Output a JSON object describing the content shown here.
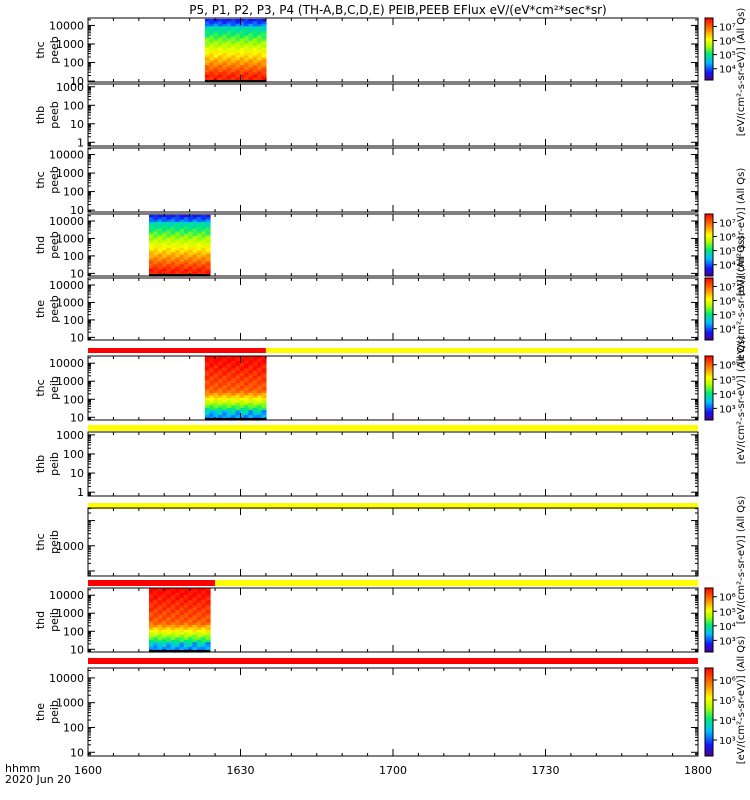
{
  "title": "P5, P1, P2, P3, P4 (TH-A,B,C,D,E) PEIB,PEEB EFlux eV/(eV*cm²*sec*sr)",
  "x_axis": {
    "ticks": [
      "1600",
      "1630",
      "1700",
      "1730",
      "1800"
    ],
    "label_line1": "hhmm",
    "label_line2": "2020 Jun 20"
  },
  "colorbar_labels": {
    "cb1": "[eV/(cm²-s-sr-eV)] (All Qs)",
    "cb2": "[eV/(cm²-s-sr-eV)] (All Qs)",
    "cb3": "[eV/(cm²-s-sr-eV)] (All Qs)",
    "cb4": "[eV/(cm²-s-sr-eV)] (All Qs)",
    "cb5": "[eV/(cm²-s-sr-eV)] (All Qs)",
    "cb6": "[eV/(cm²-s-sr-eV)] (All Qs)"
  },
  "colors": {
    "flag_red": "#ff0000",
    "flag_yellow": "#ffff00",
    "axis": "#000000"
  },
  "chart_data": {
    "type": "heatmap",
    "x_range_minutes": [
      960,
      1080
    ],
    "panels": [
      {
        "id": "p1",
        "label1": "thc",
        "label2": "peeb",
        "y_ticks": [
          "10",
          "100",
          "1000",
          "10000"
        ],
        "y_range_log": [
          0.95,
          4.4
        ],
        "spectrogram": {
          "start_min": 983,
          "end_min": 995,
          "bottom": 0.95,
          "top": 4.35,
          "style": "electron"
        },
        "colorbar": {
          "ticks": [
            "10⁴",
            "10⁵",
            "10⁶",
            "10⁷"
          ]
        }
      },
      {
        "id": "p2",
        "label1": "thb",
        "label2": "peeb",
        "y_ticks": [
          "1",
          "10",
          "100",
          "1000"
        ],
        "y_range_log": [
          -0.2,
          3.15
        ]
      },
      {
        "id": "p3",
        "label1": "thc",
        "label2": "peeb",
        "y_ticks": [
          "10",
          "100",
          "1000",
          "10000"
        ],
        "y_range_log": [
          0.9,
          4.35
        ]
      },
      {
        "id": "p4",
        "label1": "thd",
        "label2": "peeb",
        "y_ticks": [
          "10",
          "100",
          "1000",
          "10000"
        ],
        "y_range_log": [
          0.85,
          4.4
        ],
        "spectrogram": {
          "start_min": 972,
          "end_min": 984,
          "bottom": 0.85,
          "top": 4.35,
          "style": "electron"
        },
        "colorbar": {
          "ticks": [
            "10⁴",
            "10⁵",
            "10⁶",
            "10⁷"
          ]
        }
      },
      {
        "id": "p5",
        "label1": "the",
        "label2": "peeb",
        "y_ticks": [
          "10",
          "100",
          "1000",
          "10000"
        ],
        "y_range_log": [
          0.85,
          4.4
        ],
        "colorbar": {
          "ticks": [
            "10⁴",
            "10⁵",
            "10⁶",
            "10⁷"
          ]
        }
      },
      {
        "id": "p6",
        "label1": "thc",
        "label2": "peib",
        "y_ticks": [
          "10",
          "100",
          "1000",
          "10000"
        ],
        "y_range_log": [
          0.85,
          4.4
        ],
        "spectrogram": {
          "start_min": 983,
          "end_min": 995,
          "bottom": 0.85,
          "top": 4.4,
          "style": "ion"
        },
        "colorbar": {
          "ticks": [
            "10³",
            "10⁴",
            "10⁵",
            "10⁶"
          ]
        }
      },
      {
        "id": "p7",
        "label1": "thb",
        "label2": "peib",
        "y_ticks": [
          "1",
          "10",
          "100",
          "1000"
        ],
        "y_range_log": [
          -0.2,
          3.15
        ]
      },
      {
        "id": "p8",
        "label1": "thc",
        "label2": "peib",
        "y_ticks": [
          "1000"
        ],
        "y_range_log": [
          1.8,
          4.5
        ]
      },
      {
        "id": "p9",
        "label1": "thd",
        "label2": "peib",
        "y_ticks": [
          "10",
          "100",
          "1000",
          "10000"
        ],
        "y_range_log": [
          0.85,
          4.4
        ],
        "spectrogram": {
          "start_min": 972,
          "end_min": 984,
          "bottom": 0.85,
          "top": 4.4,
          "style": "ion"
        },
        "colorbar": {
          "ticks": [
            "10³",
            "10⁴",
            "10⁵",
            "10⁶"
          ]
        }
      },
      {
        "id": "p10",
        "label1": "the",
        "label2": "peib",
        "y_ticks": [
          "10",
          "100",
          "1000",
          "10000"
        ],
        "y_range_log": [
          0.85,
          4.4
        ],
        "colorbar": {
          "ticks": [
            "10³",
            "10⁴",
            "10⁵",
            "10⁶"
          ]
        }
      }
    ],
    "flag_bars": [
      {
        "between": "p5-p6",
        "segments": [
          {
            "from_min": 960,
            "to_min": 995,
            "color": "red"
          },
          {
            "from_min": 995,
            "to_min": 1080,
            "color": "yellow"
          }
        ]
      },
      {
        "between": "p6-p7",
        "segments": [
          {
            "from_min": 960,
            "to_min": 1080,
            "color": "yellow"
          }
        ]
      },
      {
        "between": "p7-p8",
        "segments": [
          {
            "from_min": 960,
            "to_min": 1080,
            "color": "yellow"
          }
        ]
      },
      {
        "between": "p8-p9",
        "segments": [
          {
            "from_min": 960,
            "to_min": 985,
            "color": "red"
          },
          {
            "from_min": 985,
            "to_min": 1080,
            "color": "yellow"
          }
        ]
      },
      {
        "between": "p9-p10",
        "segments": [
          {
            "from_min": 960,
            "to_min": 1080,
            "color": "red"
          }
        ]
      }
    ]
  }
}
